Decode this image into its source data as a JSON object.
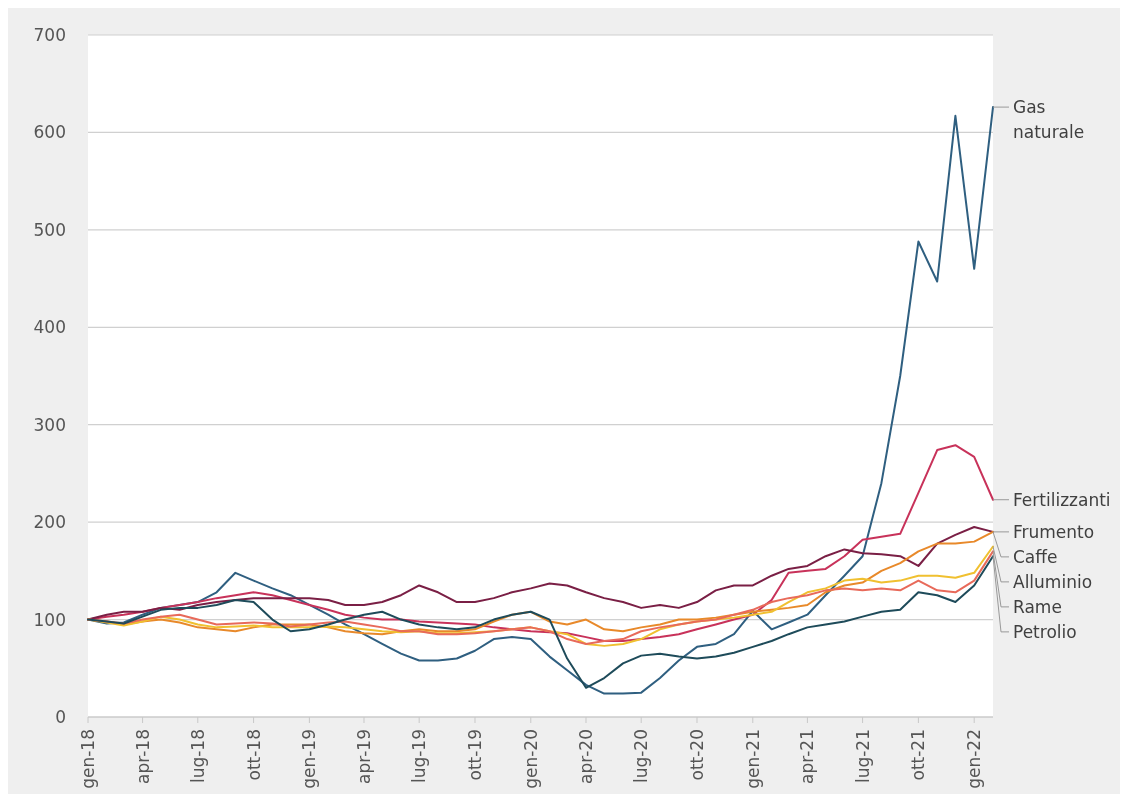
{
  "chart_data": {
    "type": "line",
    "xlim": [
      "2018-01",
      "2022-02"
    ],
    "ylim": [
      0,
      700
    ],
    "yticks": [
      0,
      100,
      200,
      300,
      400,
      500,
      600,
      700
    ],
    "xticks": [
      {
        "value": "2018-01",
        "label": "gen-18"
      },
      {
        "value": "2018-04",
        "label": "apr-18"
      },
      {
        "value": "2018-07",
        "label": "lug-18"
      },
      {
        "value": "2018-10",
        "label": "ott-18"
      },
      {
        "value": "2019-01",
        "label": "gen-19"
      },
      {
        "value": "2019-04",
        "label": "apr-19"
      },
      {
        "value": "2019-07",
        "label": "lug-19"
      },
      {
        "value": "2019-10",
        "label": "ott-19"
      },
      {
        "value": "2020-01",
        "label": "gen-20"
      },
      {
        "value": "2020-04",
        "label": "apr-20"
      },
      {
        "value": "2020-07",
        "label": "lug-20"
      },
      {
        "value": "2020-10",
        "label": "ott-20"
      },
      {
        "value": "2021-01",
        "label": "gen-21"
      },
      {
        "value": "2021-04",
        "label": "apr-21"
      },
      {
        "value": "2021-07",
        "label": "lug-21"
      },
      {
        "value": "2021-10",
        "label": "ott-21"
      },
      {
        "value": "2022-01",
        "label": "gen-22"
      }
    ],
    "x": [
      "2018-01",
      "2018-02",
      "2018-03",
      "2018-04",
      "2018-05",
      "2018-06",
      "2018-07",
      "2018-08",
      "2018-09",
      "2018-10",
      "2018-11",
      "2018-12",
      "2019-01",
      "2019-02",
      "2019-03",
      "2019-04",
      "2019-05",
      "2019-06",
      "2019-07",
      "2019-08",
      "2019-09",
      "2019-10",
      "2019-11",
      "2019-12",
      "2020-01",
      "2020-02",
      "2020-03",
      "2020-04",
      "2020-05",
      "2020-06",
      "2020-07",
      "2020-08",
      "2020-09",
      "2020-10",
      "2020-11",
      "2020-12",
      "2021-01",
      "2021-02",
      "2021-03",
      "2021-04",
      "2021-05",
      "2021-06",
      "2021-07",
      "2021-08",
      "2021-09",
      "2021-10",
      "2021-11",
      "2021-12",
      "2022-01",
      "2022-02"
    ],
    "grid": "y",
    "series": [
      {
        "name": "Gas naturale",
        "color": "#2f5f80",
        "values": [
          100,
          96,
          97,
          105,
          112,
          115,
          118,
          128,
          148,
          140,
          132,
          125,
          115,
          105,
          95,
          85,
          75,
          65,
          58,
          58,
          60,
          68,
          80,
          82,
          80,
          62,
          48,
          33,
          24,
          24,
          25,
          40,
          58,
          72,
          75,
          85,
          109,
          90,
          97,
          105,
          125,
          145,
          165,
          240,
          350,
          488,
          447,
          617,
          460,
          626
        ]
      },
      {
        "name": "Fertilizzanti",
        "color": "#c8325a",
        "values": [
          100,
          103,
          105,
          108,
          112,
          115,
          118,
          122,
          125,
          128,
          125,
          120,
          115,
          110,
          105,
          102,
          100,
          100,
          98,
          97,
          96,
          95,
          92,
          90,
          88,
          87,
          86,
          82,
          78,
          78,
          80,
          82,
          85,
          90,
          95,
          100,
          105,
          120,
          148,
          150,
          152,
          165,
          182,
          185,
          188,
          230,
          274,
          279,
          267,
          223
        ]
      },
      {
        "name": "Frumento",
        "color": "#7a1f45",
        "values": [
          100,
          105,
          108,
          108,
          112,
          110,
          115,
          118,
          120,
          122,
          122,
          122,
          122,
          120,
          115,
          115,
          118,
          125,
          135,
          128,
          118,
          118,
          122,
          128,
          132,
          137,
          135,
          128,
          122,
          118,
          112,
          115,
          112,
          118,
          130,
          135,
          135,
          145,
          152,
          155,
          165,
          172,
          168,
          167,
          165,
          155,
          178,
          187,
          195,
          190
        ]
      },
      {
        "name": "Caffe",
        "color": "#e8892a",
        "values": [
          100,
          98,
          95,
          98,
          100,
          97,
          92,
          90,
          88,
          92,
          95,
          95,
          95,
          92,
          88,
          86,
          85,
          88,
          90,
          88,
          88,
          90,
          98,
          105,
          108,
          98,
          95,
          100,
          90,
          88,
          92,
          95,
          100,
          100,
          102,
          105,
          108,
          110,
          112,
          115,
          128,
          135,
          138,
          150,
          158,
          170,
          178,
          178,
          180,
          190
        ]
      },
      {
        "name": "Alluminio",
        "color": "#f0c030",
        "values": [
          100,
          97,
          94,
          98,
          103,
          100,
          95,
          92,
          93,
          94,
          92,
          92,
          92,
          93,
          92,
          90,
          88,
          87,
          88,
          86,
          86,
          87,
          88,
          90,
          92,
          88,
          85,
          75,
          73,
          75,
          80,
          90,
          95,
          98,
          100,
          102,
          105,
          108,
          118,
          128,
          132,
          140,
          142,
          138,
          140,
          145,
          145,
          143,
          148,
          175
        ]
      },
      {
        "name": "Rame",
        "color": "#e86a5a",
        "values": [
          100,
          98,
          96,
          100,
          103,
          105,
          100,
          95,
          96,
          97,
          96,
          93,
          95,
          97,
          98,
          95,
          92,
          88,
          88,
          85,
          85,
          86,
          88,
          90,
          92,
          88,
          80,
          75,
          78,
          80,
          88,
          92,
          95,
          98,
          100,
          105,
          110,
          118,
          122,
          125,
          130,
          132,
          130,
          132,
          130,
          140,
          130,
          128,
          140,
          170
        ]
      },
      {
        "name": "Petrolio",
        "color": "#1e4b5a",
        "values": [
          100,
          98,
          96,
          103,
          110,
          112,
          112,
          115,
          120,
          118,
          100,
          88,
          90,
          95,
          100,
          105,
          108,
          100,
          95,
          92,
          90,
          92,
          100,
          105,
          108,
          100,
          60,
          30,
          40,
          55,
          63,
          65,
          62,
          60,
          62,
          66,
          72,
          78,
          85,
          92,
          95,
          98,
          103,
          108,
          110,
          128,
          125,
          118,
          135,
          165
        ]
      }
    ]
  }
}
